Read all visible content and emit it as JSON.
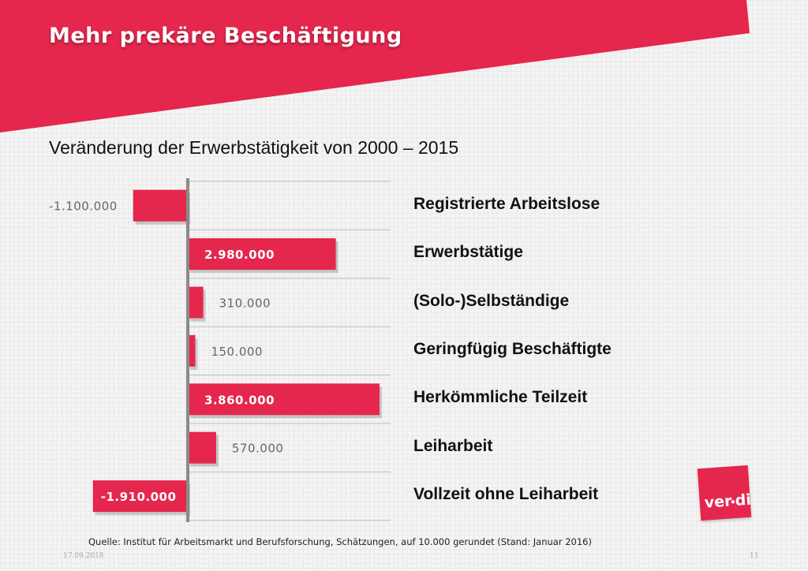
{
  "page": {
    "title": "Mehr prekäre Beschäftigung",
    "subtitle": "Veränderung der Erwerbstätigkeit von 2000 – 2015",
    "source": "Quelle: Institut für Arbeitsmarkt und Berufsforschung, Schätzungen, auf 10.000 gerundet (Stand: Januar 2016)",
    "footer_date": "17.09.2018",
    "page_number": "11",
    "logo_text": "ver.di",
    "logo_icon": "verdi-logo"
  },
  "colors": {
    "accent": "#e5264d",
    "bar_dark": "#c81d3f",
    "axis": "#8a8a8a",
    "divider": "#bdbdbd",
    "value_text_on_bar": "#ffffff",
    "value_text_outside": "#666666"
  },
  "chart_data": {
    "type": "bar",
    "orientation": "horizontal",
    "categories": [
      "Registrierte Arbeitslose",
      "Erwerbstätige",
      "(Solo-)Selbständige",
      "Geringfügig Beschäftigte",
      "Herkömmliche Teilzeit",
      "Leiharbeit",
      "Vollzeit ohne Leiharbeit"
    ],
    "values": [
      -1100000,
      2980000,
      310000,
      150000,
      3860000,
      570000,
      -1910000
    ],
    "value_labels": [
      "-1.100.000",
      "2.980.000",
      "310.000",
      "150.000",
      "3.860.000",
      "570.000",
      "-1.910.000"
    ],
    "label_on_bar": [
      false,
      true,
      false,
      false,
      true,
      false,
      true
    ],
    "xlim": [
      -1910000,
      3860000
    ],
    "grid": false,
    "legend": "none"
  }
}
